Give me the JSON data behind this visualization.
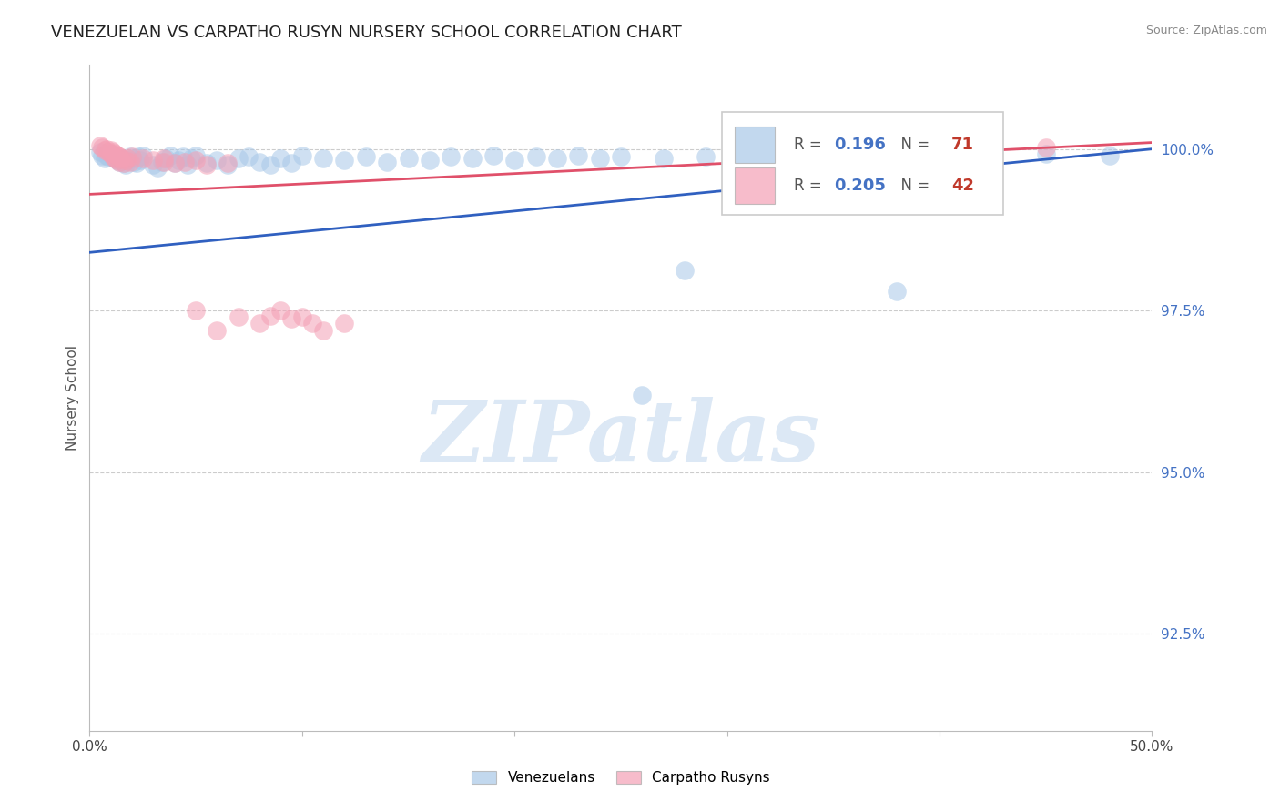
{
  "title": "VENEZUELAN VS CARPATHO RUSYN NURSERY SCHOOL CORRELATION CHART",
  "source": "Source: ZipAtlas.com",
  "ylabel": "Nursery School",
  "xlim": [
    0.0,
    0.5
  ],
  "ylim": [
    0.91,
    1.013
  ],
  "xticks": [
    0.0,
    0.1,
    0.2,
    0.3,
    0.4,
    0.5
  ],
  "xticklabels": [
    "0.0%",
    "",
    "",
    "",
    "",
    "50.0%"
  ],
  "yticks": [
    0.925,
    0.95,
    0.975,
    1.0
  ],
  "yticklabels": [
    "92.5%",
    "95.0%",
    "97.5%",
    "100.0%"
  ],
  "legend_labels": [
    "Venezuelans",
    "Carpatho Rusyns"
  ],
  "legend_R": [
    0.196,
    0.205
  ],
  "legend_N": [
    71,
    42
  ],
  "blue_color": "#a8c8e8",
  "pink_color": "#f4a0b5",
  "blue_line_color": "#3060c0",
  "pink_line_color": "#e0506a",
  "watermark_text": "ZIPatlas",
  "watermark_color": "#dce8f5",
  "blue_trend": [
    0.0,
    0.5,
    0.984,
    1.0
  ],
  "pink_trend": [
    0.0,
    0.5,
    0.993,
    1.001
  ],
  "blue_x": [
    0.005,
    0.006,
    0.007,
    0.008,
    0.009,
    0.01,
    0.011,
    0.012,
    0.013,
    0.014,
    0.015,
    0.016,
    0.017,
    0.018,
    0.019,
    0.02,
    0.021,
    0.022,
    0.023,
    0.024,
    0.025,
    0.03,
    0.032,
    0.034,
    0.036,
    0.038,
    0.04,
    0.042,
    0.044,
    0.046,
    0.048,
    0.05,
    0.055,
    0.06,
    0.065,
    0.07,
    0.075,
    0.08,
    0.085,
    0.09,
    0.095,
    0.1,
    0.11,
    0.12,
    0.13,
    0.14,
    0.15,
    0.16,
    0.17,
    0.18,
    0.19,
    0.2,
    0.21,
    0.22,
    0.23,
    0.24,
    0.25,
    0.27,
    0.29,
    0.31,
    0.33,
    0.35,
    0.38,
    0.4,
    0.42,
    0.45,
    0.37,
    0.28,
    0.32,
    0.26,
    0.48
  ],
  "blue_y": [
    0.9995,
    0.999,
    0.9985,
    0.999,
    0.9988,
    0.9992,
    0.9988,
    0.9985,
    0.9982,
    0.998,
    0.9985,
    0.9978,
    0.9975,
    0.9982,
    0.9988,
    0.9985,
    0.998,
    0.9978,
    0.9988,
    0.9982,
    0.999,
    0.9975,
    0.9972,
    0.998,
    0.9985,
    0.999,
    0.9978,
    0.9982,
    0.9988,
    0.9975,
    0.9985,
    0.999,
    0.9978,
    0.9982,
    0.9975,
    0.9985,
    0.9988,
    0.998,
    0.9975,
    0.9985,
    0.9978,
    0.999,
    0.9985,
    0.9982,
    0.9988,
    0.998,
    0.9985,
    0.9982,
    0.9988,
    0.9985,
    0.999,
    0.9982,
    0.9988,
    0.9985,
    0.999,
    0.9985,
    0.9988,
    0.9985,
    0.9988,
    0.999,
    0.9985,
    0.9972,
    0.978,
    0.9982,
    0.9988,
    0.9992,
    0.9968,
    0.9812,
    0.998,
    0.962,
    0.999
  ],
  "pink_x": [
    0.005,
    0.006,
    0.007,
    0.008,
    0.009,
    0.01,
    0.01,
    0.011,
    0.011,
    0.012,
    0.012,
    0.013,
    0.013,
    0.014,
    0.014,
    0.015,
    0.016,
    0.017,
    0.018,
    0.019,
    0.02,
    0.025,
    0.03,
    0.035,
    0.04,
    0.05,
    0.06,
    0.07,
    0.08,
    0.09,
    0.1,
    0.11,
    0.12,
    0.05,
    0.055,
    0.065,
    0.085,
    0.095,
    0.105,
    0.45,
    0.035,
    0.045
  ],
  "pink_y": [
    1.0005,
    1.0002,
    0.9998,
    1.0,
    0.9995,
    0.9998,
    0.9992,
    0.9995,
    0.9988,
    0.9992,
    0.9985,
    0.999,
    0.9982,
    0.9988,
    0.998,
    0.9985,
    0.9978,
    0.9982,
    0.9985,
    0.998,
    0.9988,
    0.9985,
    0.9982,
    0.998,
    0.9978,
    0.975,
    0.972,
    0.974,
    0.973,
    0.975,
    0.974,
    0.972,
    0.973,
    0.9982,
    0.9975,
    0.9978,
    0.9742,
    0.9738,
    0.973,
    1.0002,
    0.9985,
    0.998
  ]
}
